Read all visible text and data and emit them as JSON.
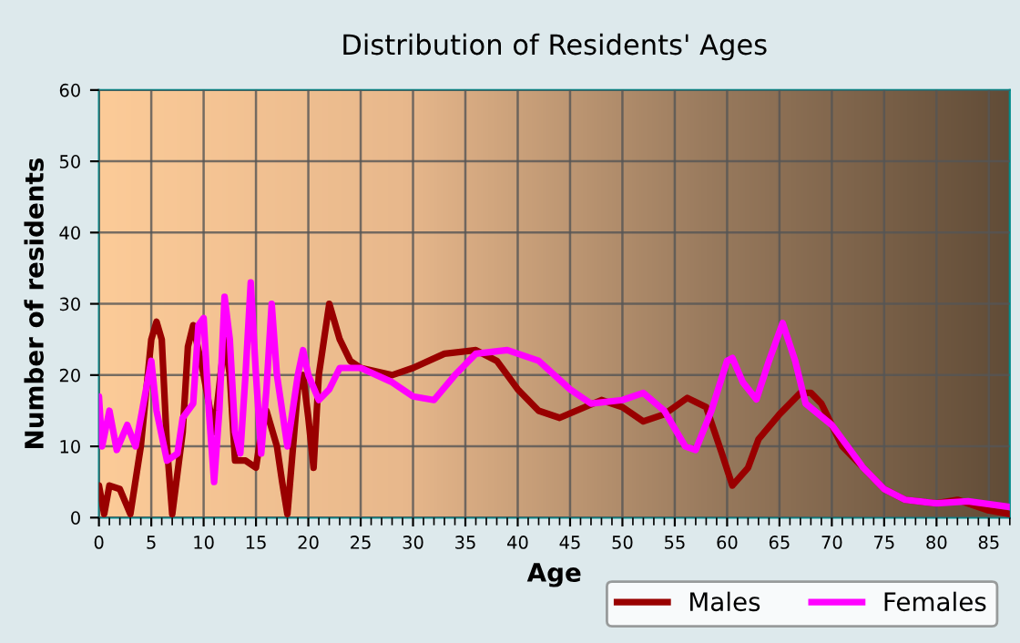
{
  "chart_data": {
    "type": "line",
    "title": "Distribution of Residents' Ages",
    "xlabel": "Age",
    "ylabel": "Number of residents",
    "xlim": [
      0,
      87
    ],
    "xticks": [
      0,
      5,
      10,
      15,
      20,
      25,
      30,
      35,
      40,
      45,
      50,
      55,
      60,
      65,
      70,
      75,
      80,
      85
    ],
    "ylim": [
      0,
      60
    ],
    "yticks": [
      0,
      10,
      20,
      30,
      40,
      50,
      60
    ],
    "grid": true,
    "legend": "bottom right",
    "line_style": "solid",
    "marker": "none",
    "series": [
      {
        "name": "Males",
        "color": "#990000",
        "x": [
          0,
          0.5,
          1,
          2,
          3,
          4,
          5,
          5.5,
          6,
          6.5,
          7,
          8,
          8.5,
          9,
          10,
          11,
          12,
          12.5,
          13,
          14,
          15,
          15.5,
          16,
          17,
          17.5,
          18,
          19,
          19.5,
          20,
          20.5,
          21,
          22,
          23,
          24,
          25,
          28,
          30,
          33,
          36,
          38,
          40,
          42,
          44,
          48,
          50,
          52,
          54,
          56.2,
          58,
          59.5,
          60.5,
          62,
          63,
          65,
          67,
          68,
          69,
          71,
          73,
          75,
          77,
          80,
          82,
          85,
          87
        ],
        "values": [
          4.5,
          0.5,
          4.5,
          4,
          0.5,
          10,
          25,
          27.5,
          25,
          10,
          0.5,
          12,
          24,
          27,
          20,
          12,
          25,
          20,
          8,
          8,
          7,
          12,
          15,
          10,
          5,
          0.5,
          18,
          20,
          14,
          7,
          20,
          30,
          25,
          22,
          21,
          20,
          21,
          23,
          23.5,
          22,
          18,
          15,
          14,
          16.5,
          15.5,
          13.5,
          14.5,
          16.8,
          15.5,
          9,
          4.5,
          7,
          11,
          14.5,
          17.5,
          17.5,
          16,
          10,
          7,
          4,
          2.5,
          2,
          2.5,
          1,
          0.5
        ]
      },
      {
        "name": "Females",
        "color": "#ff00ff",
        "x": [
          0,
          0.3,
          1,
          1.7,
          2.7,
          3.5,
          4.5,
          5,
          5.5,
          6.5,
          7.5,
          8,
          9,
          9.5,
          10,
          10.5,
          11,
          11.5,
          12,
          12.5,
          13,
          13.5,
          14,
          14.5,
          15,
          15.5,
          16,
          16.5,
          17,
          18,
          19,
          19.5,
          20,
          21,
          22,
          23,
          25,
          28,
          30,
          32,
          34,
          36,
          39,
          42,
          45,
          47,
          50,
          52,
          54,
          56,
          57,
          58.5,
          60,
          60.5,
          61.5,
          62.8,
          64,
          65.3,
          66.5,
          67.5,
          70,
          73,
          75,
          77,
          80,
          83,
          87
        ],
        "values": [
          17,
          10,
          15,
          9.5,
          13,
          10,
          18,
          22,
          15,
          8,
          9,
          14,
          16,
          27,
          28,
          15,
          5,
          15,
          31,
          25,
          12,
          9,
          20,
          33,
          20,
          9,
          18,
          30,
          20,
          10,
          20,
          23.5,
          20,
          16.5,
          18,
          21,
          21,
          19,
          17,
          16.5,
          20,
          23,
          23.5,
          22,
          18,
          16,
          16.5,
          17.5,
          15,
          10,
          9.5,
          15,
          22,
          22.4,
          19,
          16.6,
          22,
          27.3,
          22,
          16,
          13,
          7,
          4,
          2.5,
          2,
          2.3,
          1.5
        ]
      }
    ]
  }
}
